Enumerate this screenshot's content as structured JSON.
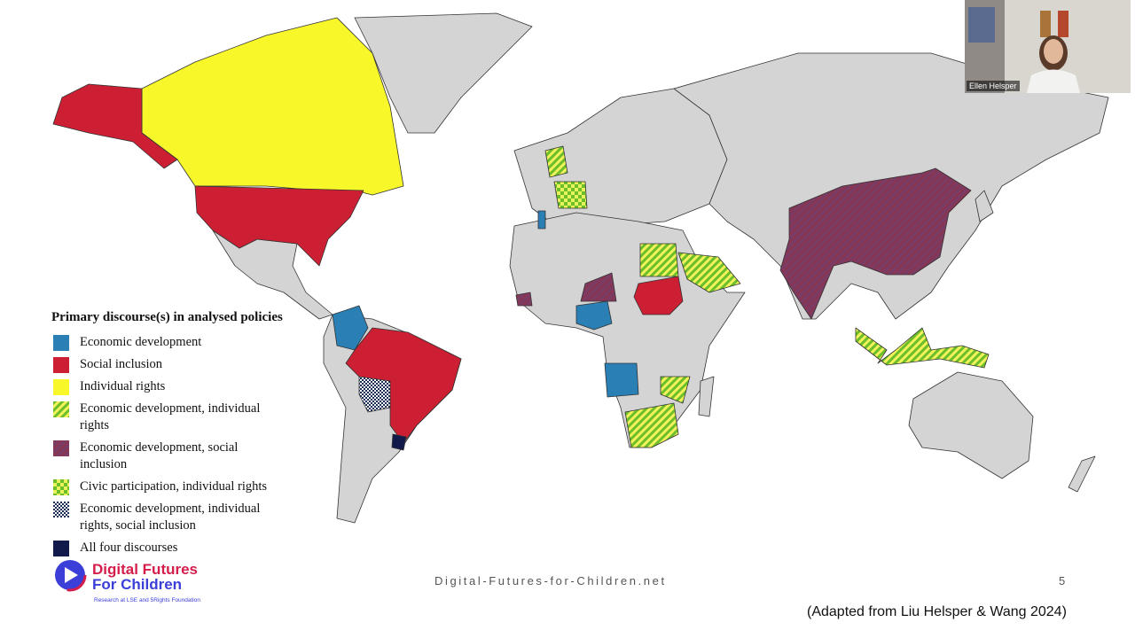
{
  "slide": {
    "legend": {
      "title": "Primary discourse(s) in analysed policies",
      "items": [
        "Economic development",
        "Social inclusion",
        "Individual rights",
        "Economic development, individual rights",
        "Economic development, social inclusion",
        "Civic participation, individual rights",
        "Economic development, individual rights, social inclusion",
        "All four discourses"
      ]
    },
    "logo": {
      "line1": "Digital Futures",
      "line2": "For Children",
      "tagline": "Research at LSE and 5Rights Foundation"
    },
    "footer_url": "Digital-Futures-for-Children.net",
    "page_number": "5",
    "citation": "(Adapted from Liu Helsper & Wang 2024)"
  },
  "video": {
    "participant_name": "Ellen Helsper"
  }
}
